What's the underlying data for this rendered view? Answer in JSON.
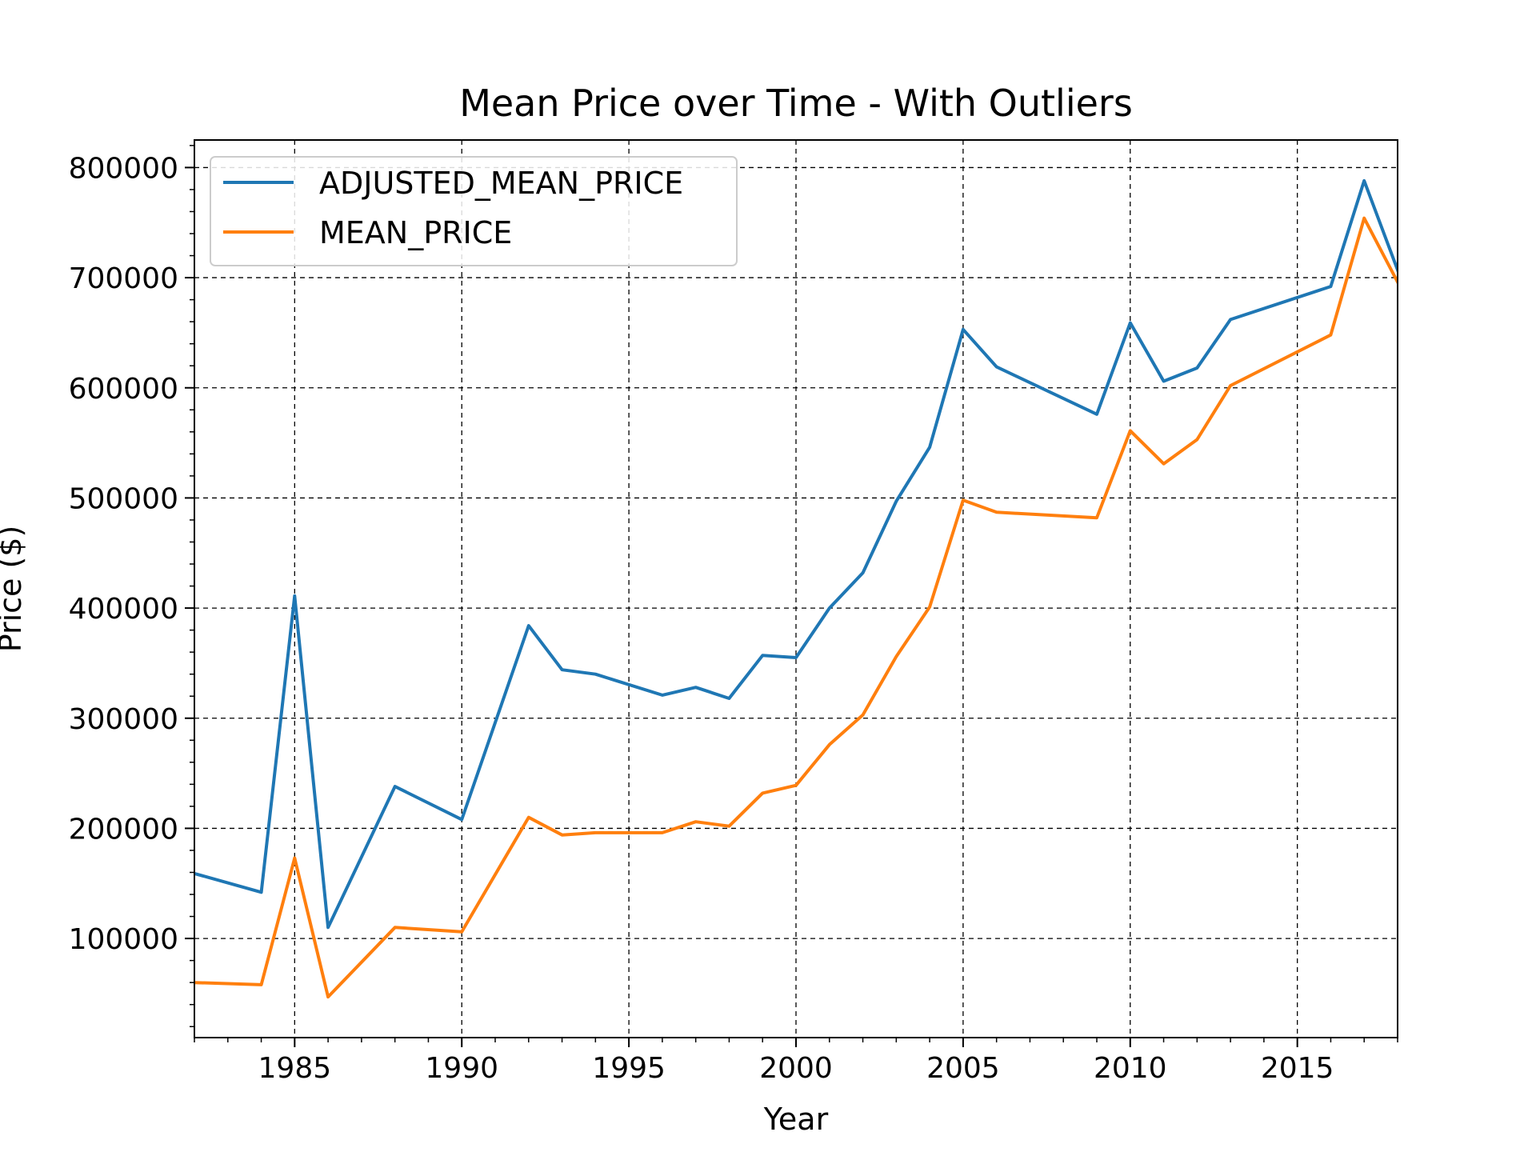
{
  "chart_data": {
    "type": "line",
    "title": "Mean Price over Time - With Outliers",
    "xlabel": "Year",
    "ylabel": "Price ($)",
    "xlim": [
      1982,
      2018
    ],
    "ylim": [
      10000,
      825000
    ],
    "x_ticks": [
      1985,
      1990,
      1995,
      2000,
      2005,
      2010,
      2015
    ],
    "x_minor_step": 1,
    "y_ticks": [
      100000,
      200000,
      300000,
      400000,
      500000,
      600000,
      700000,
      800000
    ],
    "y_minor_step": 20000,
    "grid": true,
    "legend_position": "top-left",
    "series": [
      {
        "name": "ADJUSTED_MEAN_PRICE",
        "color": "#1f77b4",
        "points": [
          [
            1982,
            159000
          ],
          [
            1984,
            142000
          ],
          [
            1985,
            411000
          ],
          [
            1986,
            110000
          ],
          [
            1988,
            238000
          ],
          [
            1990,
            208000
          ],
          [
            1992,
            384000
          ],
          [
            1993,
            344000
          ],
          [
            1994,
            340000
          ],
          [
            1996,
            321000
          ],
          [
            1997,
            328000
          ],
          [
            1998,
            318000
          ],
          [
            1999,
            357000
          ],
          [
            2000,
            355000
          ],
          [
            2001,
            400000
          ],
          [
            2002,
            432000
          ],
          [
            2003,
            497000
          ],
          [
            2004,
            546000
          ],
          [
            2005,
            653000
          ],
          [
            2006,
            619000
          ],
          [
            2009,
            576000
          ],
          [
            2010,
            659000
          ],
          [
            2011,
            606000
          ],
          [
            2012,
            618000
          ],
          [
            2013,
            662000
          ],
          [
            2016,
            692000
          ],
          [
            2017,
            788000
          ],
          [
            2018,
            707000
          ]
        ]
      },
      {
        "name": "MEAN_PRICE",
        "color": "#ff7f0e",
        "points": [
          [
            1982,
            60000
          ],
          [
            1984,
            58000
          ],
          [
            1985,
            173000
          ],
          [
            1986,
            47000
          ],
          [
            1988,
            110000
          ],
          [
            1990,
            106000
          ],
          [
            1992,
            210000
          ],
          [
            1993,
            194000
          ],
          [
            1994,
            196000
          ],
          [
            1996,
            196000
          ],
          [
            1997,
            206000
          ],
          [
            1998,
            202000
          ],
          [
            1999,
            232000
          ],
          [
            2000,
            239000
          ],
          [
            2001,
            276000
          ],
          [
            2002,
            303000
          ],
          [
            2003,
            356000
          ],
          [
            2004,
            401000
          ],
          [
            2005,
            498000
          ],
          [
            2006,
            487000
          ],
          [
            2009,
            482000
          ],
          [
            2010,
            561000
          ],
          [
            2011,
            531000
          ],
          [
            2012,
            553000
          ],
          [
            2013,
            602000
          ],
          [
            2016,
            648000
          ],
          [
            2017,
            754000
          ],
          [
            2018,
            696000
          ]
        ]
      }
    ]
  }
}
